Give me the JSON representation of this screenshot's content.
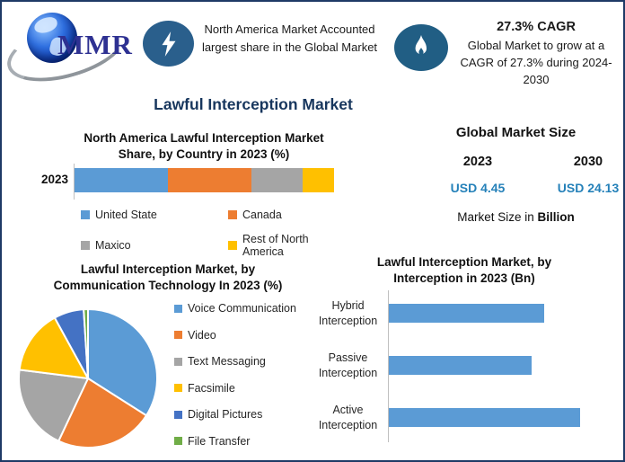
{
  "window": {
    "border_color": "#1e3a66",
    "background": "#ffffff"
  },
  "header": {
    "logo": {
      "text": "MMR",
      "icon": "globe"
    },
    "highlight_share": {
      "icon": "lightning-bolt",
      "text": "North America Market Accounted largest share in the Global Market"
    },
    "highlight_cagr": {
      "icon": "flame",
      "title": "27.3% CAGR",
      "text": "Global Market to grow at a CAGR of 27.3% during 2024-2030"
    }
  },
  "main_title": "Lawful Interception Market",
  "market_size": {
    "title": "Global Market Size",
    "year_left": "2023",
    "year_right": "2030",
    "value_left": "USD 4.45",
    "value_right": "USD 24.13",
    "value_color": "#2581b9",
    "note_prefix": "Market Size in ",
    "note_bold": "Billion"
  },
  "chart_data": [
    {
      "type": "bar",
      "variant": "stacked-horizontal",
      "title": "North America Lawful Interception Market Share, by Country in 2023 (%)",
      "title_lines": [
        "North America Lawful Interception Market",
        "Share, by Country in 2023 (%)"
      ],
      "categories": [
        "2023"
      ],
      "series": [
        {
          "name": "United State",
          "color": "#5b9bd5",
          "values": [
            36
          ]
        },
        {
          "name": "Canada",
          "color": "#ed7d31",
          "values": [
            32
          ]
        },
        {
          "name": "Maxico",
          "color": "#a5a5a5",
          "values": [
            20
          ]
        },
        {
          "name": "Rest of North America",
          "color": "#ffc000",
          "values": [
            12
          ]
        }
      ],
      "xlim": [
        0,
        100
      ],
      "unit": "%",
      "legend_position": "bottom"
    },
    {
      "type": "pie",
      "title": "Lawful Interception Market, by Communication Technology In 2023 (%)",
      "title_lines": [
        "Lawful Interception Market, by",
        "Communication Technology In 2023 (%)"
      ],
      "labels": [
        "Voice Communication",
        "Video",
        "Text Messaging",
        "Facsimile",
        "Digital Pictures",
        "File Transfer"
      ],
      "values": [
        34,
        23,
        20,
        15,
        7,
        1
      ],
      "colors": [
        "#5b9bd5",
        "#ed7d31",
        "#a5a5a5",
        "#ffc000",
        "#4472c4",
        "#70ad47"
      ],
      "start_angle_deg": 0,
      "direction": "clockwise",
      "legend_position": "right"
    },
    {
      "type": "bar",
      "variant": "horizontal",
      "title": "Lawful Interception Market, by Interception  in 2023 (Bn)",
      "title_lines": [
        "Lawful Interception Market, by",
        "Interception  in 2023 (Bn)"
      ],
      "categories": [
        "Hybrid Interception",
        "Passive Interception",
        "Active Interception"
      ],
      "values": [
        1.41,
        1.3,
        1.74
      ],
      "bar_color": "#5b9bd5",
      "xlim": [
        0,
        2.1
      ],
      "unit": "Bn",
      "grid": false
    }
  ]
}
